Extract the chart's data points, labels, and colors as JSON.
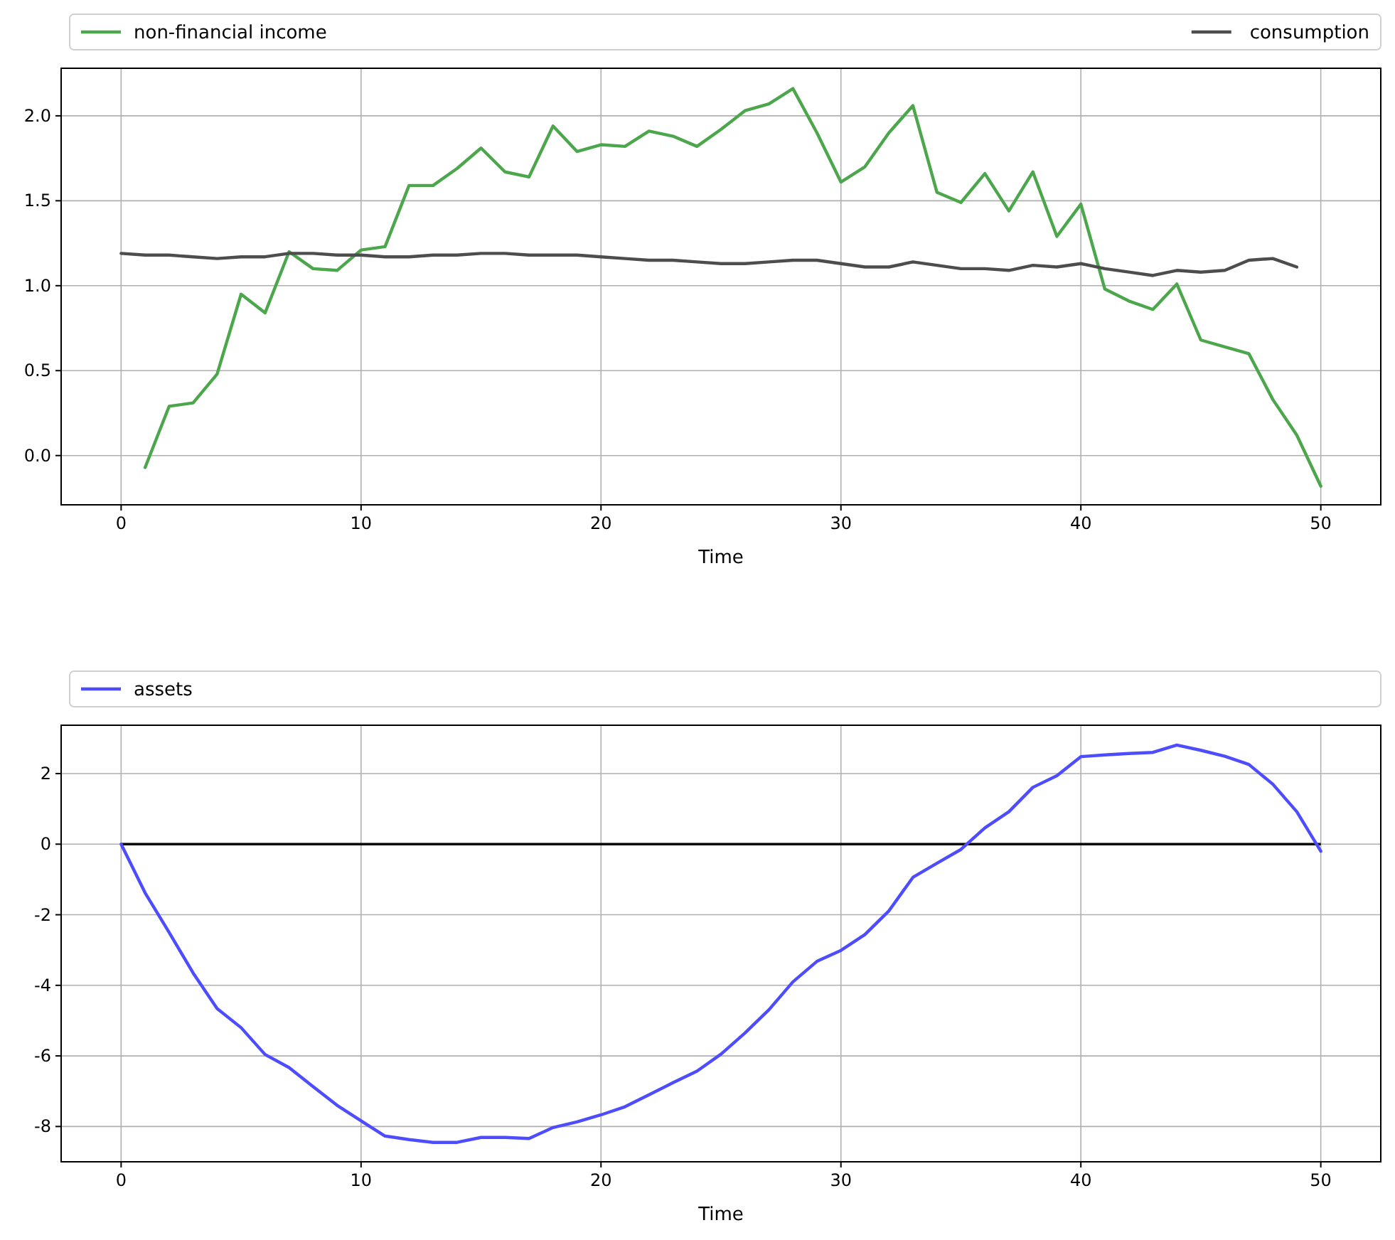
{
  "chart_data": [
    {
      "type": "line",
      "xlabel": "Time",
      "xlim": [
        -2.5,
        52.5
      ],
      "ylim": [
        -0.29,
        2.28
      ],
      "xticks": [
        0,
        10,
        20,
        30,
        40,
        50
      ],
      "yticks": [
        {
          "value": 0,
          "label": "0.0"
        },
        0.5,
        {
          "value": 1,
          "label": "1.0"
        },
        1.5,
        {
          "value": 2,
          "label": "2.0"
        }
      ],
      "grid": true,
      "legend": "top",
      "series": [
        {
          "name": "non-financial income",
          "color": "#4ca64c",
          "x": [
            1,
            2,
            3,
            4,
            5,
            6,
            7,
            8,
            9,
            10,
            11,
            12,
            13,
            14,
            15,
            16,
            17,
            18,
            19,
            20,
            21,
            22,
            23,
            24,
            25,
            26,
            27,
            28,
            29,
            30,
            31,
            32,
            33,
            34,
            35,
            36,
            37,
            38,
            39,
            40,
            41,
            42,
            43,
            44,
            45,
            46,
            47,
            48,
            49,
            50
          ],
          "values": [
            -0.07,
            0.29,
            0.31,
            0.48,
            0.95,
            0.84,
            1.2,
            1.1,
            1.09,
            1.21,
            1.23,
            1.59,
            1.59,
            1.69,
            1.81,
            1.67,
            1.64,
            1.94,
            1.79,
            1.83,
            1.82,
            1.91,
            1.88,
            1.82,
            1.92,
            2.03,
            2.07,
            2.16,
            1.9,
            1.61,
            1.7,
            1.9,
            2.06,
            1.55,
            1.49,
            1.66,
            1.44,
            1.67,
            1.29,
            1.48,
            0.98,
            0.91,
            0.86,
            1.01,
            0.68,
            0.64,
            0.6,
            0.33,
            0.12,
            -0.18
          ]
        },
        {
          "name": "consumption",
          "color": "#4d4d4d",
          "x": [
            0,
            1,
            2,
            3,
            4,
            5,
            6,
            7,
            8,
            9,
            10,
            11,
            12,
            13,
            14,
            15,
            16,
            17,
            18,
            19,
            20,
            21,
            22,
            23,
            24,
            25,
            26,
            27,
            28,
            29,
            30,
            31,
            32,
            33,
            34,
            35,
            36,
            37,
            38,
            39,
            40,
            41,
            42,
            43,
            44,
            45,
            46,
            47,
            48,
            49
          ],
          "values": [
            1.19,
            1.18,
            1.18,
            1.17,
            1.16,
            1.17,
            1.17,
            1.19,
            1.19,
            1.18,
            1.18,
            1.17,
            1.17,
            1.18,
            1.18,
            1.19,
            1.19,
            1.18,
            1.18,
            1.18,
            1.17,
            1.16,
            1.15,
            1.15,
            1.14,
            1.13,
            1.13,
            1.14,
            1.15,
            1.15,
            1.13,
            1.11,
            1.11,
            1.14,
            1.12,
            1.1,
            1.1,
            1.09,
            1.12,
            1.11,
            1.13,
            1.1,
            1.08,
            1.06,
            1.09,
            1.08,
            1.09,
            1.15,
            1.16,
            1.11
          ]
        }
      ]
    },
    {
      "type": "line",
      "xlabel": "Time",
      "xlim": [
        -2.5,
        52.5
      ],
      "ylim": [
        -9.0,
        3.37
      ],
      "xticks": [
        0,
        10,
        20,
        30,
        40,
        50
      ],
      "yticks": [
        -8,
        -6,
        -4,
        -2,
        0,
        2
      ],
      "grid": true,
      "legend": "top",
      "ref_lines": [
        {
          "axis": "y",
          "value": 0,
          "color": "#000000"
        }
      ],
      "series": [
        {
          "name": "assets",
          "color": "#4d4dff",
          "x": [
            0,
            1,
            2,
            3,
            4,
            5,
            6,
            7,
            8,
            9,
            10,
            11,
            12,
            13,
            14,
            15,
            16,
            17,
            18,
            19,
            20,
            21,
            22,
            23,
            24,
            25,
            26,
            27,
            28,
            29,
            30,
            31,
            32,
            33,
            34,
            35,
            36,
            37,
            38,
            39,
            40,
            41,
            42,
            43,
            44,
            45,
            46,
            47,
            48,
            49,
            50
          ],
          "values": [
            0,
            -1.38,
            -2.5,
            -3.65,
            -4.66,
            -5.2,
            -5.96,
            -6.33,
            -6.87,
            -7.4,
            -7.84,
            -8.27,
            -8.37,
            -8.45,
            -8.45,
            -8.31,
            -8.31,
            -8.34,
            -8.03,
            -7.87,
            -7.67,
            -7.44,
            -7.1,
            -6.76,
            -6.43,
            -5.95,
            -5.35,
            -4.69,
            -3.9,
            -3.32,
            -3.01,
            -2.56,
            -1.89,
            -0.94,
            -0.54,
            -0.15,
            0.46,
            0.92,
            1.61,
            1.94,
            2.48,
            2.53,
            2.57,
            2.6,
            2.81,
            2.66,
            2.49,
            2.26,
            1.7,
            0.92,
            -0.2
          ]
        }
      ]
    }
  ]
}
